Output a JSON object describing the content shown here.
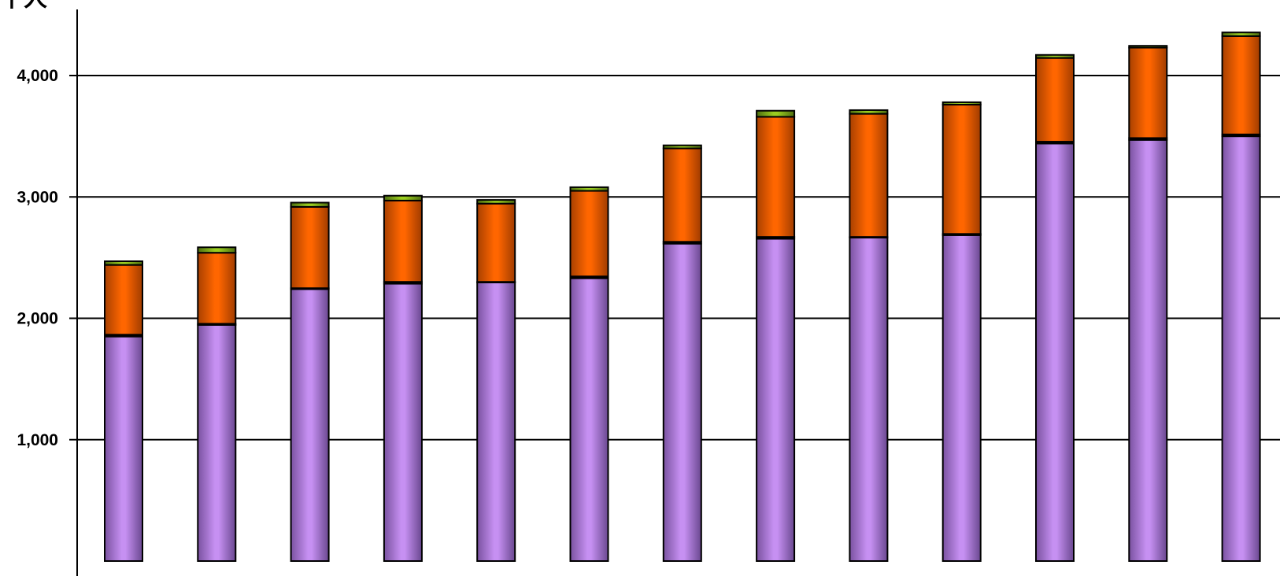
{
  "chart_data": {
    "type": "bar",
    "stacked": true,
    "ylabel": "千人",
    "ylim": [
      0,
      4400
    ],
    "yticks": [
      1000,
      2000,
      3000,
      4000
    ],
    "ytick_labels": [
      "1,000",
      "2,000",
      "3,000",
      "4,000"
    ],
    "grid": true,
    "legend": "none",
    "bar_count": 13,
    "series": [
      {
        "color": "#c690f2",
        "values": [
          1850,
          1945,
          2240,
          2285,
          2295,
          2330,
          2615,
          2655,
          2665,
          2685,
          3440,
          3470,
          3500
        ]
      },
      {
        "color": "#000000",
        "values": [
          15,
          10,
          8,
          15,
          5,
          15,
          15,
          15,
          5,
          10,
          15,
          15,
          15
        ]
      },
      {
        "color": "#ff6600",
        "values": [
          575,
          585,
          670,
          670,
          645,
          705,
          770,
          990,
          1015,
          1065,
          690,
          745,
          810
        ]
      },
      {
        "color": "#8ab820",
        "values": [
          30,
          45,
          35,
          40,
          30,
          30,
          25,
          50,
          30,
          20,
          25,
          15,
          30
        ]
      }
    ]
  }
}
